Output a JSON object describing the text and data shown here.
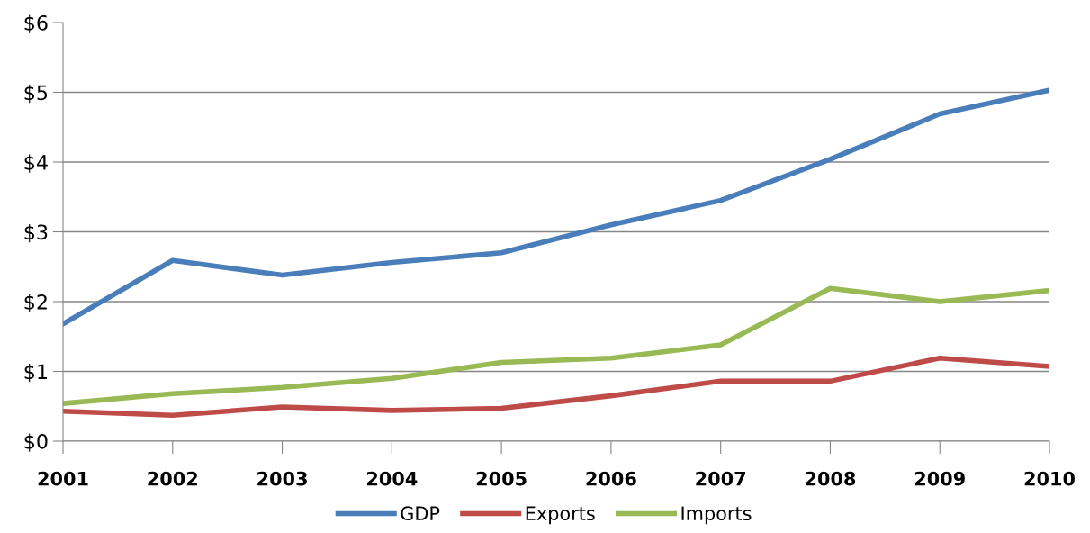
{
  "chart_data": {
    "type": "line",
    "categories": [
      "2001",
      "2002",
      "2003",
      "2004",
      "2005",
      "2006",
      "2007",
      "2008",
      "2009",
      "2010"
    ],
    "series": [
      {
        "name": "GDP",
        "color": "#4a7ebb",
        "values": [
          1.68,
          2.59,
          2.38,
          2.56,
          2.7,
          3.1,
          3.45,
          4.04,
          4.69,
          5.03
        ]
      },
      {
        "name": "Exports",
        "color": "#be4b48",
        "values": [
          0.43,
          0.37,
          0.49,
          0.44,
          0.47,
          0.65,
          0.86,
          0.86,
          1.19,
          1.07
        ]
      },
      {
        "name": "Imports",
        "color": "#98b954",
        "values": [
          0.54,
          0.68,
          0.77,
          0.9,
          1.13,
          1.19,
          1.38,
          2.19,
          2.0,
          2.16
        ]
      }
    ],
    "ylim": [
      0,
      6
    ],
    "yticks": [
      {
        "value": 0,
        "label": "$0"
      },
      {
        "value": 1,
        "label": "$1"
      },
      {
        "value": 2,
        "label": "$2"
      },
      {
        "value": 3,
        "label": "$3"
      },
      {
        "value": 4,
        "label": "$4"
      },
      {
        "value": 5,
        "label": "$5"
      },
      {
        "value": 6,
        "label": "$6"
      }
    ],
    "grid": "y",
    "legend": "bottom",
    "marker": "none",
    "line_style": "solid"
  }
}
